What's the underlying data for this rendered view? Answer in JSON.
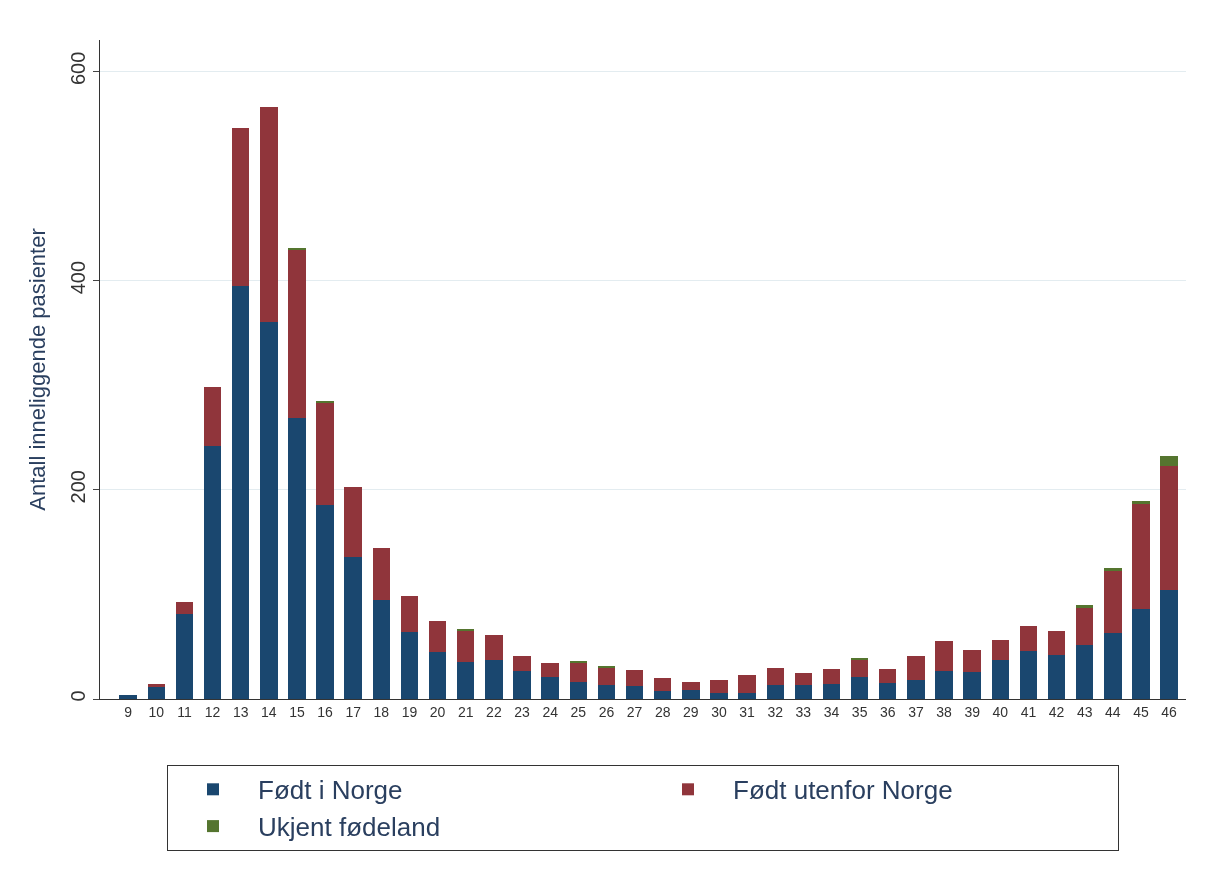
{
  "chart_data": {
    "type": "bar",
    "stacked": true,
    "ylabel": "Antall inneliggende pasienter",
    "categories": [
      "9",
      "10",
      "11",
      "12",
      "13",
      "14",
      "15",
      "16",
      "17",
      "18",
      "19",
      "20",
      "21",
      "22",
      "23",
      "24",
      "25",
      "26",
      "27",
      "28",
      "29",
      "30",
      "31",
      "32",
      "33",
      "34",
      "35",
      "36",
      "37",
      "38",
      "39",
      "40",
      "41",
      "42",
      "43",
      "44",
      "45",
      "46"
    ],
    "series": [
      {
        "name": "Født i Norge",
        "color": "#1a476f",
        "values": [
          4,
          11,
          81,
          242,
          395,
          360,
          269,
          185,
          136,
          95,
          64,
          45,
          35,
          37,
          27,
          21,
          16,
          13,
          12,
          8,
          9,
          6,
          6,
          13,
          13,
          14,
          21,
          15,
          18,
          27,
          26,
          37,
          46,
          42,
          52,
          63,
          86,
          104
        ]
      },
      {
        "name": "Født utenfor Norge",
        "color": "#90353b",
        "values": [
          0,
          3,
          12,
          56,
          151,
          206,
          160,
          98,
          67,
          49,
          34,
          30,
          30,
          24,
          14,
          13,
          18,
          17,
          16,
          12,
          7,
          12,
          17,
          17,
          12,
          15,
          16,
          14,
          23,
          28,
          21,
          19,
          24,
          23,
          35,
          59,
          100,
          119
        ]
      },
      {
        "name": "Ukjent fødeland",
        "color": "#55752f",
        "values": [
          0,
          0,
          0,
          0,
          0,
          0,
          2,
          2,
          0,
          0,
          0,
          0,
          2,
          0,
          0,
          0,
          2,
          2,
          0,
          0,
          0,
          0,
          0,
          0,
          0,
          0,
          2,
          0,
          0,
          0,
          0,
          0,
          0,
          0,
          3,
          3,
          3,
          9
        ]
      }
    ],
    "ylim": [
      0,
      630
    ],
    "yticks": [
      0,
      200,
      400,
      600
    ],
    "grid": "y",
    "legend": "bottom"
  }
}
